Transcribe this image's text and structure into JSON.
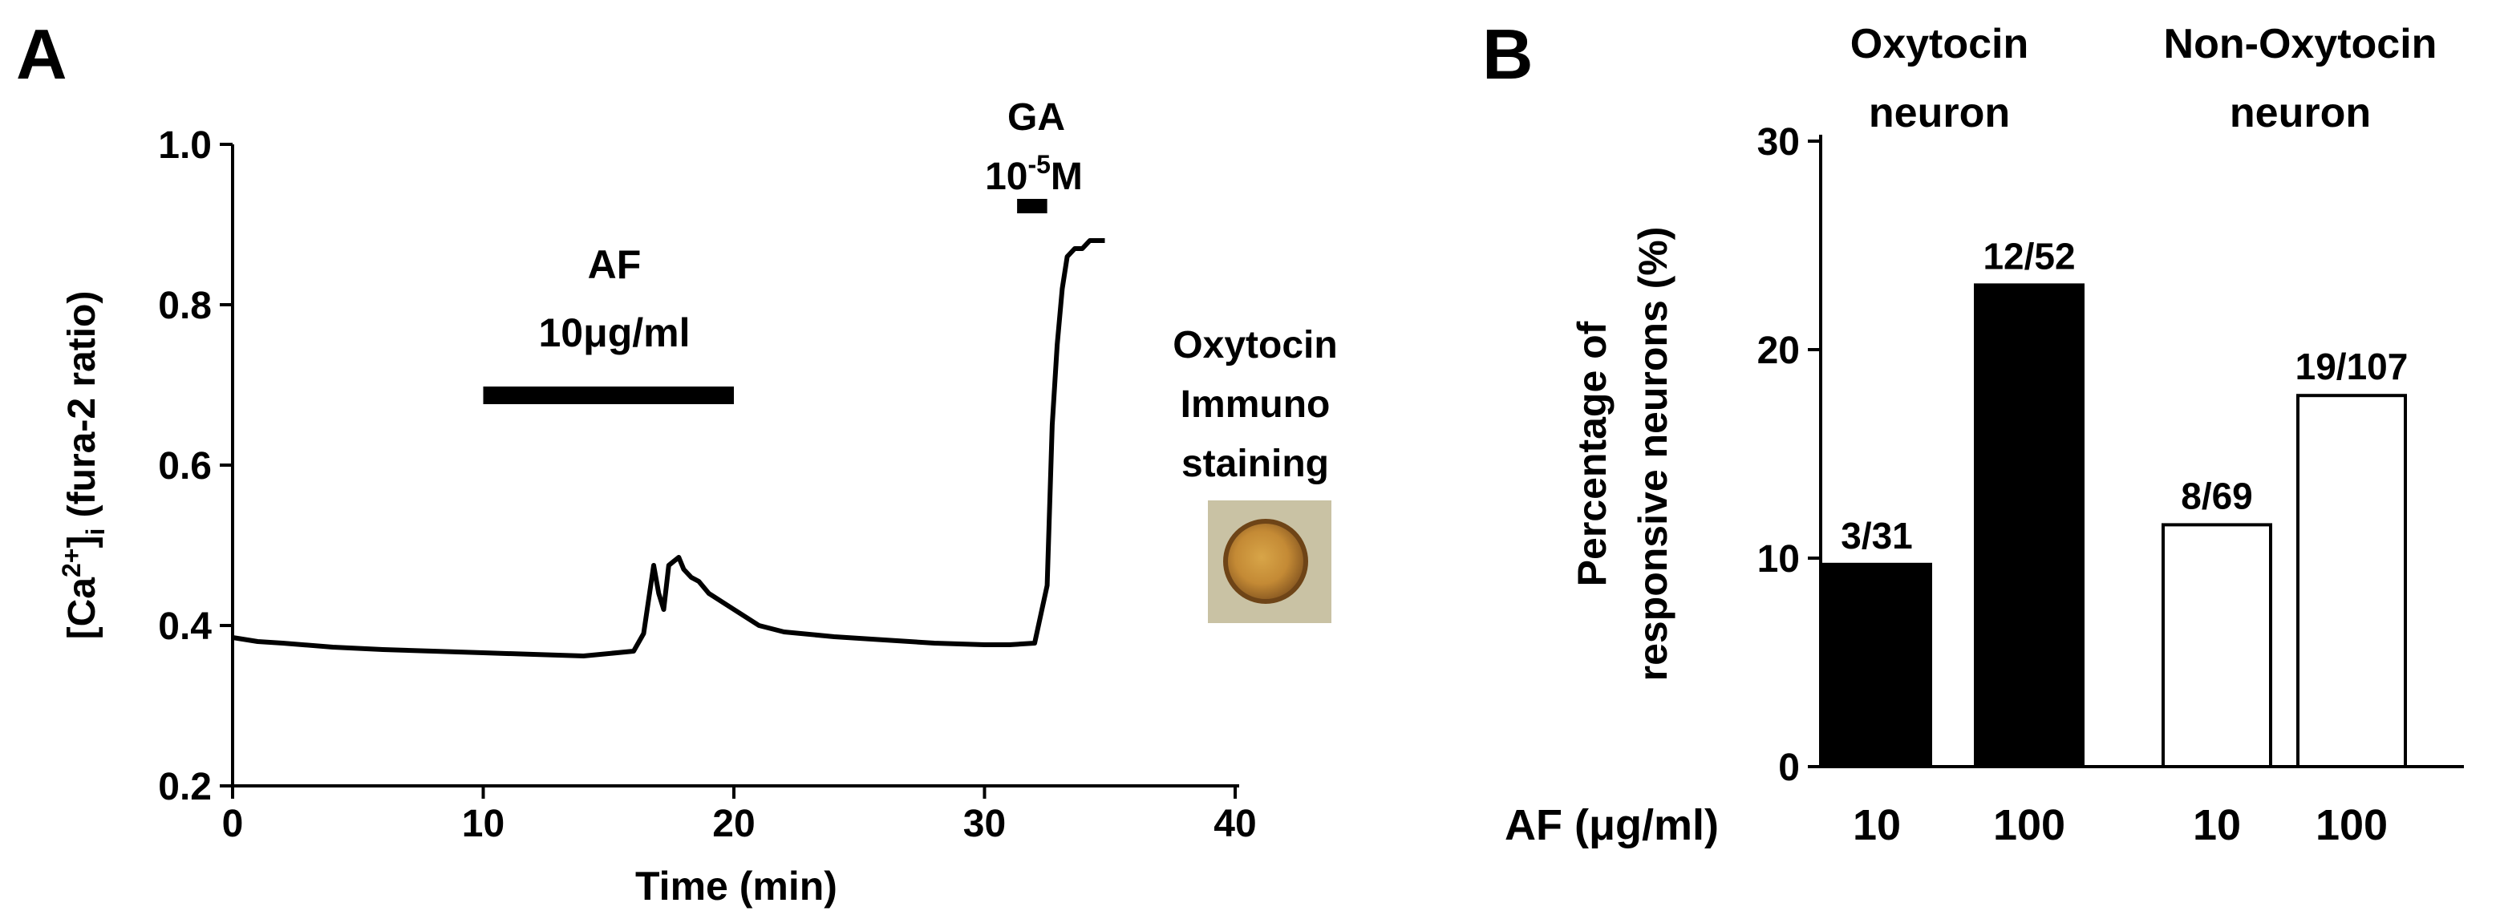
{
  "panel_a": {
    "letter": "A",
    "ylabel_main": "[Ca",
    "ylabel_sup": "2+",
    "ylabel_mid": "]",
    "ylabel_sub": "i",
    "ylabel_tail": " (fura-2 ratio)",
    "xlabel": "Time (min)",
    "af_label_1": "AF",
    "af_label_2": "10μg/ml",
    "ga_label_1": "GA",
    "ga_label_2a": "10",
    "ga_label_2sup": "-5",
    "ga_label_2b": "M",
    "inset_label_1": "Oxytocin",
    "inset_label_2": "Immuno",
    "inset_label_3": "staining"
  },
  "panel_b": {
    "letter": "B",
    "ylabel_1": "Percentage of",
    "ylabel_2": "responsive neurons (%)",
    "group_1_line1": "Oxytocin",
    "group_1_line2": "neuron",
    "group_2_line1": "Non-Oxytocin",
    "group_2_line2": "neuron",
    "x_axis_title": "AF (μg/ml)"
  },
  "chart_data": [
    {
      "type": "line",
      "panel": "A",
      "xlabel": "Time (min)",
      "ylabel": "[Ca2+]i (fura-2 ratio)",
      "xlim": [
        0,
        40
      ],
      "ylim": [
        0.2,
        1.0
      ],
      "x_ticks": [
        0,
        10,
        20,
        30,
        40
      ],
      "x_tick_labels": [
        "0",
        "10",
        "20",
        "30",
        "40"
      ],
      "y_ticks": [
        0.2,
        0.4,
        0.6,
        0.8,
        1.0
      ],
      "y_tick_labels": [
        "0.2",
        "0.4",
        "0.6",
        "0.8",
        "1.0"
      ],
      "series": [
        {
          "x": [
            0,
            1,
            2,
            4,
            6,
            8,
            10,
            12,
            14,
            16,
            16.4,
            16.8,
            17.0,
            17.2,
            17.4,
            17.6,
            17.8,
            18.0,
            18.3,
            18.6,
            19,
            20,
            21,
            22,
            24,
            26,
            28,
            30,
            31,
            32,
            32.5,
            32.7,
            32.9,
            33.1,
            33.3,
            33.6,
            33.9,
            34.2,
            34.5,
            34.8
          ],
          "y": [
            0.385,
            0.38,
            0.378,
            0.373,
            0.37,
            0.368,
            0.366,
            0.364,
            0.362,
            0.368,
            0.39,
            0.475,
            0.44,
            0.42,
            0.475,
            0.48,
            0.485,
            0.47,
            0.46,
            0.455,
            0.44,
            0.42,
            0.4,
            0.392,
            0.386,
            0.382,
            0.378,
            0.376,
            0.376,
            0.378,
            0.45,
            0.65,
            0.75,
            0.82,
            0.86,
            0.87,
            0.87,
            0.88,
            0.88,
            0.88
          ]
        }
      ],
      "annotations": [
        {
          "label": "AF 10μg/ml",
          "x_start": 10,
          "x_end": 20
        },
        {
          "label": "GA 10-5M",
          "x_start": 31.3,
          "x_end": 32.5
        }
      ]
    },
    {
      "type": "bar",
      "panel": "B",
      "ylabel": "Percentage of responsive neurons (%)",
      "xlabel": "AF (μg/ml)",
      "ylim": [
        0,
        30
      ],
      "y_ticks": [
        0,
        10,
        20,
        30
      ],
      "y_tick_labels": [
        "0",
        "10",
        "20",
        "30"
      ],
      "categories": [
        "10",
        "100",
        "10",
        "100"
      ],
      "groups": [
        "Oxytocin neuron",
        "Oxytocin neuron",
        "Non-Oxytocin neuron",
        "Non-Oxytocin neuron"
      ],
      "values": [
        9.7,
        23.1,
        11.6,
        17.8
      ],
      "data_labels": [
        "3/31",
        "12/52",
        "8/69",
        "19/107"
      ],
      "fills": [
        "#000000",
        "#000000",
        "#ffffff",
        "#ffffff"
      ]
    }
  ]
}
